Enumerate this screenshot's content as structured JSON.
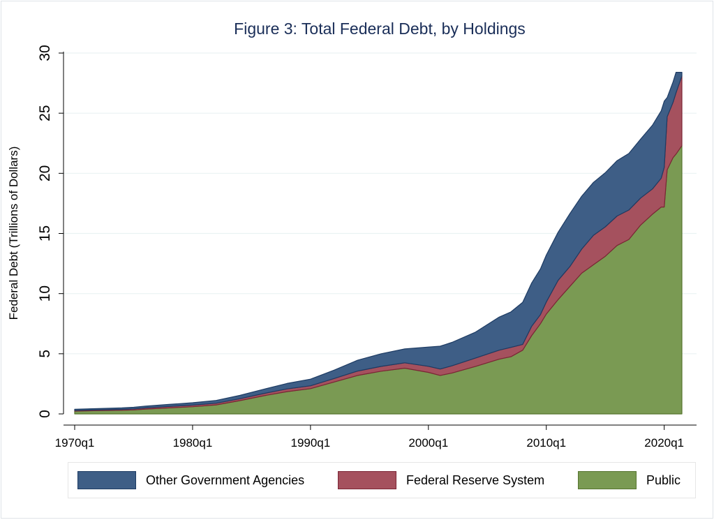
{
  "chart_data": {
    "type": "area",
    "stacked": true,
    "title": "Figure 3: Total Federal Debt, by Holdings",
    "ylabel": "Federal Debt (Trillions of Dollars)",
    "xlabel": "",
    "ylim": [
      0,
      30
    ],
    "yticks": [
      0,
      5,
      10,
      15,
      20,
      25,
      30
    ],
    "xlim": [
      1970,
      2022
    ],
    "xticks": [
      {
        "value": 1970,
        "label": "1970q1"
      },
      {
        "value": 1980,
        "label": "1980q1"
      },
      {
        "value": 1990,
        "label": "1990q1"
      },
      {
        "value": 2000,
        "label": "2000q1"
      },
      {
        "value": 2010,
        "label": "2010q1"
      },
      {
        "value": 2020,
        "label": "2020q1"
      }
    ],
    "grid": true,
    "legend_position": "bottom",
    "x": [
      1970,
      1972,
      1974,
      1975,
      1976,
      1978,
      1980,
      1982,
      1984,
      1986,
      1988,
      1990,
      1992,
      1994,
      1996,
      1998,
      2000,
      2001,
      2002,
      2004,
      2006,
      2007,
      2008,
      2008.75,
      2009.5,
      2010,
      2011,
      2012,
      2013,
      2014,
      2015,
      2016,
      2017,
      2018,
      2019,
      2019.75,
      2020,
      2020.25,
      2020.75,
      2021,
      2021.5
    ],
    "series": [
      {
        "name": "Public",
        "color": "#7a9a53",
        "values": [
          0.23,
          0.27,
          0.3,
          0.33,
          0.4,
          0.5,
          0.6,
          0.75,
          1.1,
          1.5,
          1.85,
          2.1,
          2.65,
          3.2,
          3.55,
          3.8,
          3.45,
          3.2,
          3.4,
          3.95,
          4.55,
          4.75,
          5.3,
          6.5,
          7.5,
          8.3,
          9.5,
          10.6,
          11.7,
          12.4,
          13.1,
          14.0,
          14.5,
          15.7,
          16.6,
          17.2,
          17.2,
          20.3,
          21.3,
          21.6,
          22.3
        ]
      },
      {
        "name": "Federal Reserve System",
        "color": "#a5515e",
        "values": [
          0.06,
          0.07,
          0.08,
          0.09,
          0.1,
          0.12,
          0.13,
          0.14,
          0.16,
          0.19,
          0.23,
          0.24,
          0.29,
          0.36,
          0.4,
          0.45,
          0.51,
          0.53,
          0.6,
          0.7,
          0.75,
          0.78,
          0.48,
          0.77,
          0.75,
          1.0,
          1.6,
          1.65,
          2.0,
          2.45,
          2.45,
          2.45,
          2.45,
          2.25,
          2.1,
          2.4,
          3.3,
          4.4,
          4.6,
          5.1,
          5.8
        ]
      },
      {
        "name": "Other Government Agencies",
        "color": "#3e5e86",
        "values": [
          0.1,
          0.1,
          0.12,
          0.13,
          0.15,
          0.17,
          0.2,
          0.23,
          0.28,
          0.35,
          0.45,
          0.55,
          0.7,
          0.9,
          1.05,
          1.15,
          1.6,
          1.9,
          1.95,
          2.15,
          2.75,
          2.95,
          3.5,
          3.6,
          3.8,
          3.9,
          4.0,
          4.4,
          4.4,
          4.4,
          4.5,
          4.6,
          4.7,
          4.9,
          5.3,
          5.6,
          5.5,
          1.6,
          1.7,
          1.7,
          0.3
        ]
      }
    ]
  }
}
